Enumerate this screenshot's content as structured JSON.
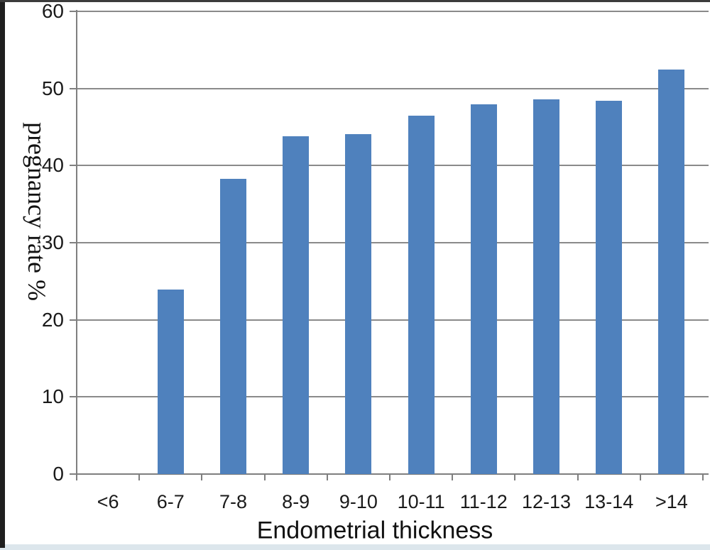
{
  "chart_data": {
    "type": "bar",
    "title": "",
    "xlabel": "Endometrial thickness",
    "ylabel": "pregnancy rate %",
    "categories": [
      "<6",
      "6-7",
      "7-8",
      "8-9",
      "9-10",
      "10-11",
      "11-12",
      "12-13",
      "13-14",
      ">14"
    ],
    "values": [
      0,
      23.9,
      38.3,
      43.8,
      44.1,
      46.5,
      47.9,
      48.6,
      48.4,
      52.5
    ],
    "ylim": [
      0,
      60
    ],
    "yticks": [
      0,
      10,
      20,
      30,
      40,
      50,
      60
    ],
    "grid": "horizontal-major",
    "legend": "none",
    "bar_color": "#4f81bd",
    "axis_color": "#7f7f7f",
    "gridline_color": "#8a8a8a",
    "series": [
      {
        "name": "pregnancy rate %",
        "values": [
          0,
          23.9,
          38.3,
          43.8,
          44.1,
          46.5,
          47.9,
          48.6,
          48.4,
          52.5
        ]
      }
    ]
  },
  "page": {
    "background_color": "#ffffff",
    "bottom_strip_color": "#dce6ec",
    "left_strip_color": "#1f1f1f",
    "top_strip_color": "#3c3c3c"
  }
}
